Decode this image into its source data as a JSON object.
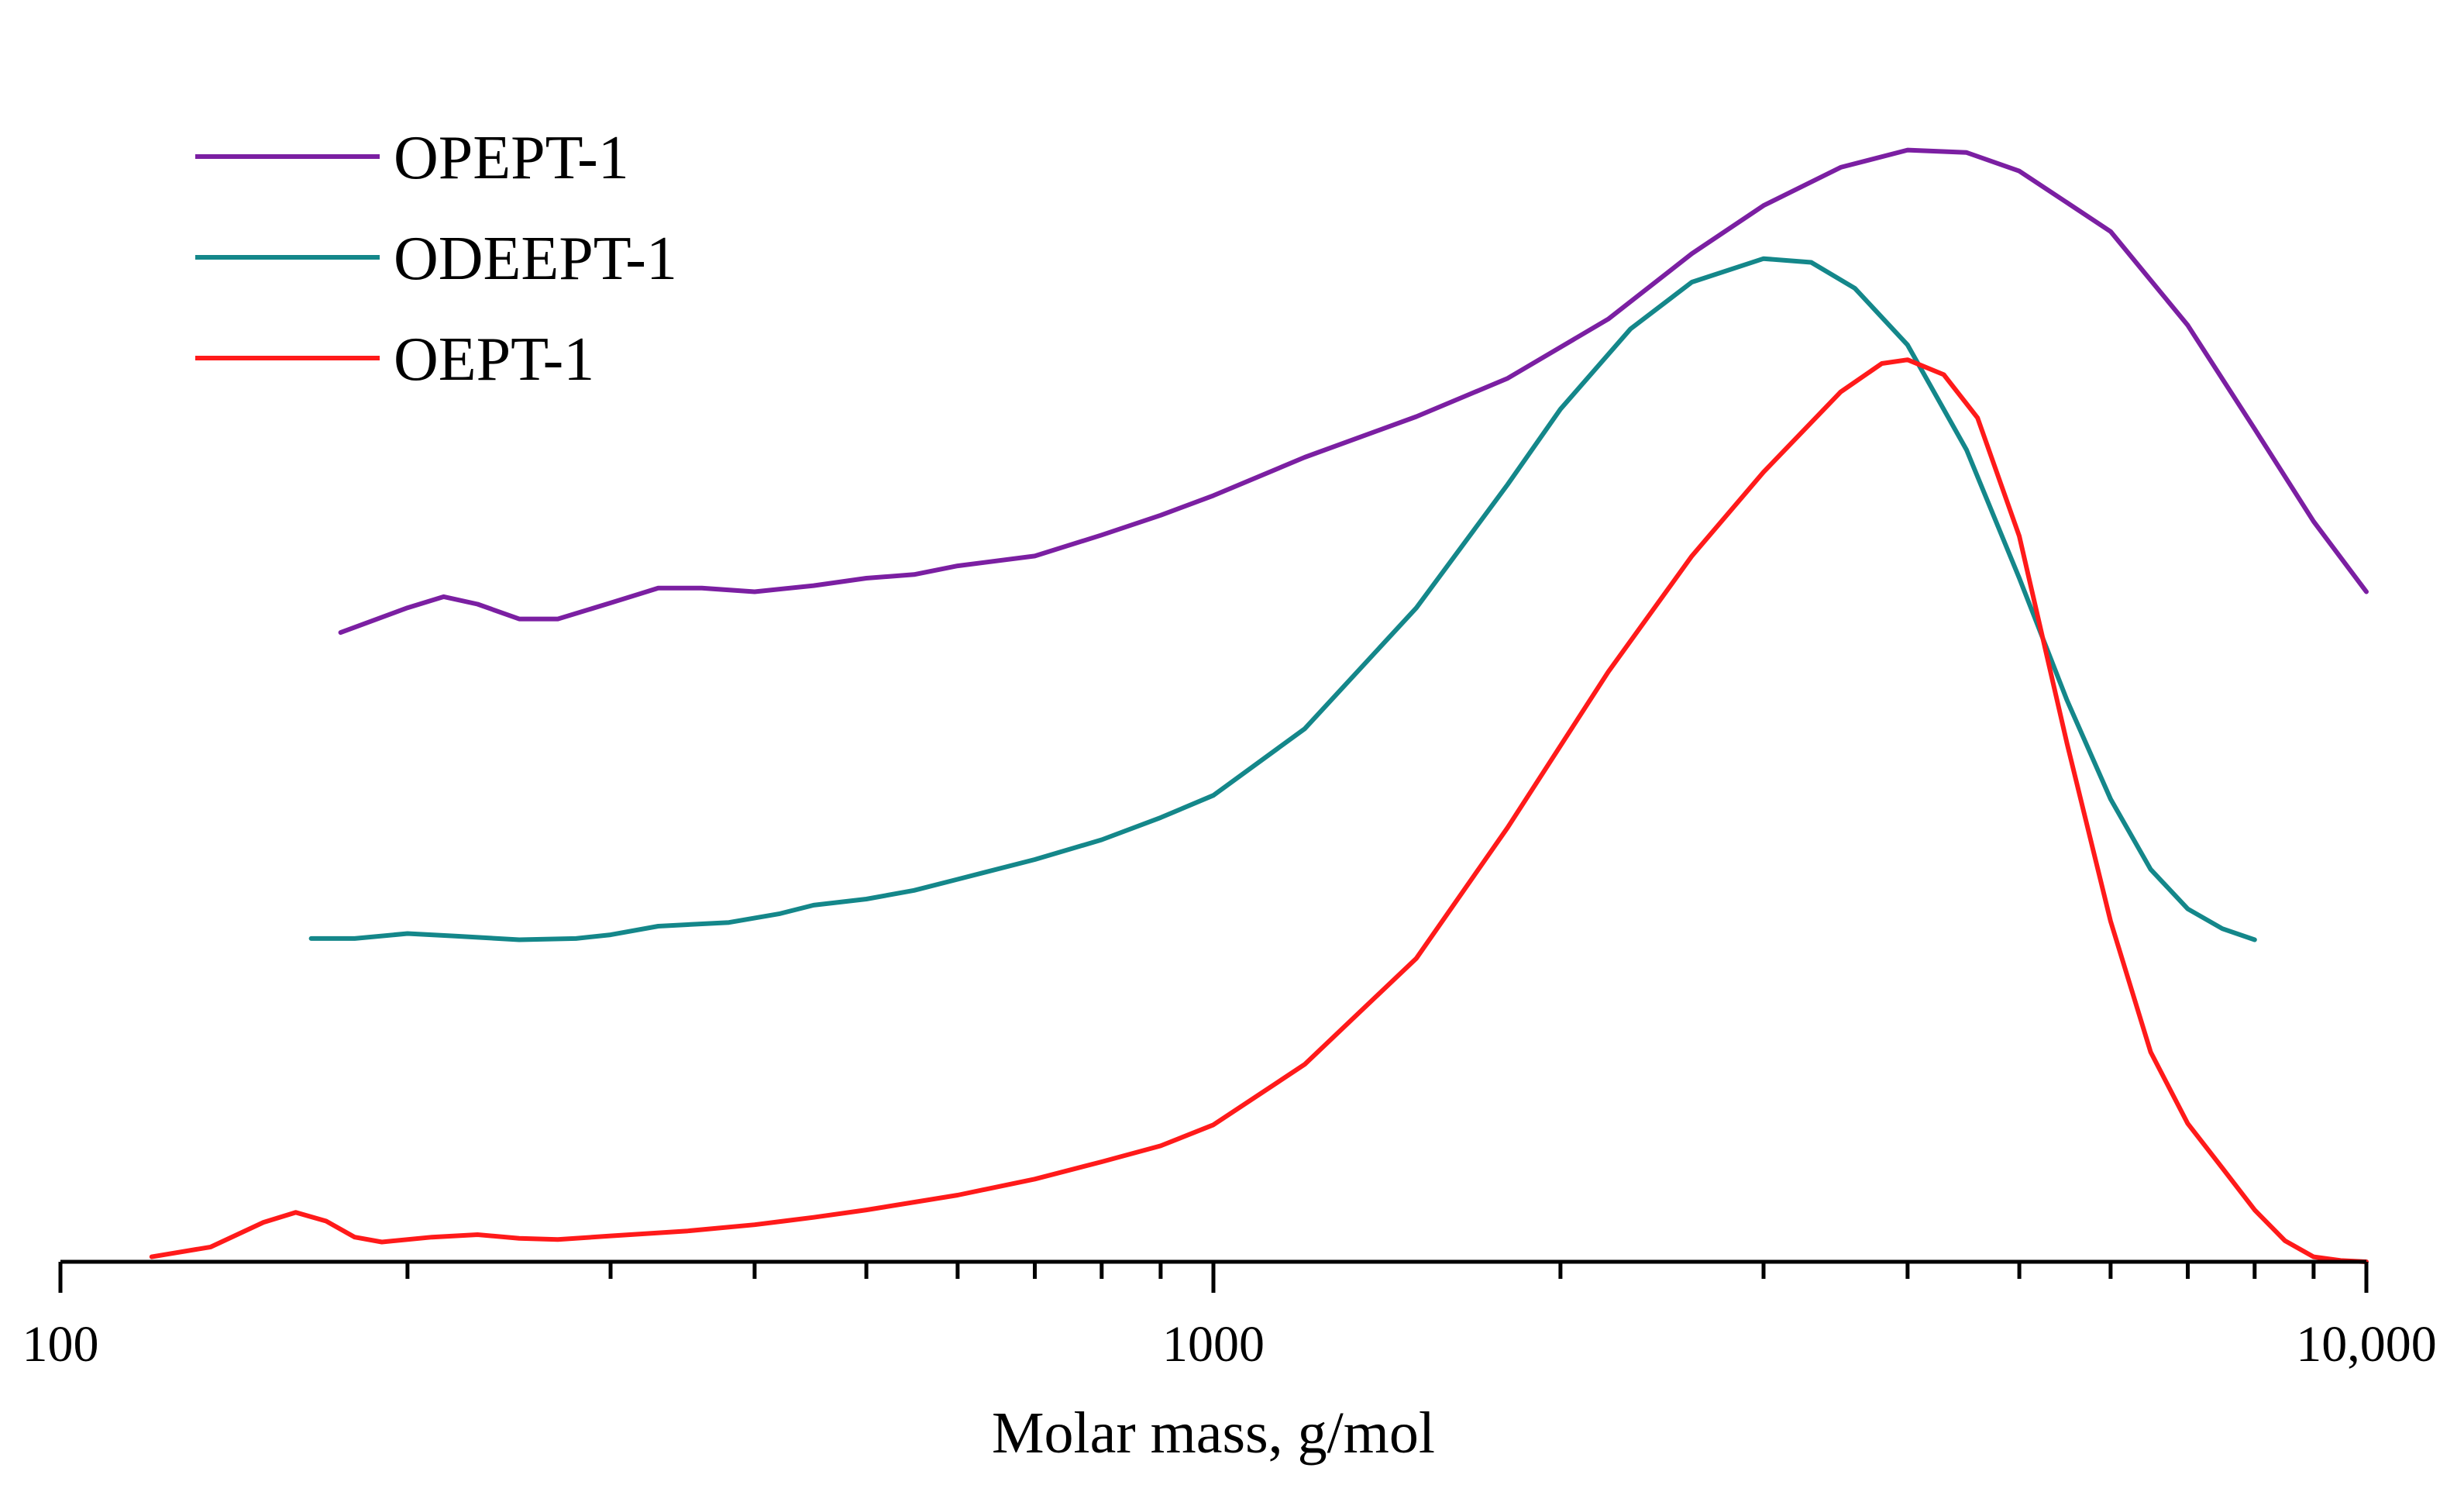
{
  "chart_data": {
    "type": "line",
    "title": "",
    "xlabel": "Molar mass, g/mol",
    "ylabel": "",
    "xscale": "log",
    "xlim": [
      100,
      10000
    ],
    "ylim": [
      0,
      1.0
    ],
    "x_tick_labels": [
      "100",
      "1000",
      "10,000"
    ],
    "x_tick_values": [
      100,
      1000,
      10000
    ],
    "minor_ticks": [
      200,
      300,
      400,
      500,
      600,
      700,
      800,
      900,
      2000,
      3000,
      4000,
      5000,
      6000,
      7000,
      8000,
      9000
    ],
    "y_axis_visible": false,
    "grid": false,
    "legend_position": "top-left",
    "series": [
      {
        "name": "OPEPT-1",
        "color": "#7B1FA2",
        "points": [
          [
            175,
            0.51
          ],
          [
            200,
            0.53
          ],
          [
            215,
            0.539
          ],
          [
            230,
            0.533
          ],
          [
            250,
            0.521
          ],
          [
            270,
            0.521
          ],
          [
            300,
            0.534
          ],
          [
            330,
            0.546
          ],
          [
            360,
            0.546
          ],
          [
            400,
            0.543
          ],
          [
            450,
            0.548
          ],
          [
            500,
            0.554
          ],
          [
            550,
            0.557
          ],
          [
            600,
            0.564
          ],
          [
            700,
            0.572
          ],
          [
            800,
            0.589
          ],
          [
            900,
            0.605
          ],
          [
            1000,
            0.621
          ],
          [
            1200,
            0.652
          ],
          [
            1500,
            0.685
          ],
          [
            1800,
            0.716
          ],
          [
            2200,
            0.764
          ],
          [
            2600,
            0.817
          ],
          [
            3000,
            0.856
          ],
          [
            3500,
            0.887
          ],
          [
            4000,
            0.901
          ],
          [
            4500,
            0.899
          ],
          [
            5000,
            0.884
          ],
          [
            6000,
            0.835
          ],
          [
            7000,
            0.759
          ],
          [
            8000,
            0.675
          ],
          [
            9000,
            0.6
          ],
          [
            10000,
            0.543
          ]
        ]
      },
      {
        "name": "ODEEPT-1",
        "color": "#14878A",
        "points": [
          [
            165,
            0.262
          ],
          [
            180,
            0.262
          ],
          [
            200,
            0.266
          ],
          [
            220,
            0.264
          ],
          [
            250,
            0.261
          ],
          [
            280,
            0.262
          ],
          [
            300,
            0.265
          ],
          [
            330,
            0.272
          ],
          [
            380,
            0.275
          ],
          [
            420,
            0.282
          ],
          [
            450,
            0.289
          ],
          [
            500,
            0.294
          ],
          [
            550,
            0.301
          ],
          [
            600,
            0.31
          ],
          [
            700,
            0.326
          ],
          [
            800,
            0.342
          ],
          [
            900,
            0.36
          ],
          [
            1000,
            0.378
          ],
          [
            1200,
            0.432
          ],
          [
            1500,
            0.53
          ],
          [
            1800,
            0.63
          ],
          [
            2000,
            0.691
          ],
          [
            2300,
            0.756
          ],
          [
            2600,
            0.794
          ],
          [
            3000,
            0.813
          ],
          [
            3300,
            0.81
          ],
          [
            3600,
            0.789
          ],
          [
            4000,
            0.743
          ],
          [
            4500,
            0.658
          ],
          [
            5000,
            0.554
          ],
          [
            5500,
            0.455
          ],
          [
            6000,
            0.375
          ],
          [
            6500,
            0.318
          ],
          [
            7000,
            0.286
          ],
          [
            7500,
            0.27
          ],
          [
            8000,
            0.261
          ]
        ]
      },
      {
        "name": "OEPT-1",
        "color": "#FF1A1A",
        "points": [
          [
            120,
            0.004
          ],
          [
            135,
            0.012
          ],
          [
            150,
            0.032
          ],
          [
            160,
            0.04
          ],
          [
            170,
            0.033
          ],
          [
            180,
            0.02
          ],
          [
            190,
            0.016
          ],
          [
            210,
            0.02
          ],
          [
            230,
            0.022
          ],
          [
            250,
            0.019
          ],
          [
            270,
            0.018
          ],
          [
            300,
            0.021
          ],
          [
            350,
            0.025
          ],
          [
            400,
            0.03
          ],
          [
            450,
            0.036
          ],
          [
            500,
            0.042
          ],
          [
            600,
            0.054
          ],
          [
            700,
            0.067
          ],
          [
            800,
            0.081
          ],
          [
            900,
            0.094
          ],
          [
            1000,
            0.111
          ],
          [
            1200,
            0.16
          ],
          [
            1500,
            0.246
          ],
          [
            1800,
            0.352
          ],
          [
            2200,
            0.478
          ],
          [
            2600,
            0.572
          ],
          [
            3000,
            0.64
          ],
          [
            3500,
            0.705
          ],
          [
            3800,
            0.728
          ],
          [
            4000,
            0.731
          ],
          [
            4300,
            0.719
          ],
          [
            4600,
            0.684
          ],
          [
            5000,
            0.588
          ],
          [
            5500,
            0.42
          ],
          [
            6000,
            0.276
          ],
          [
            6500,
            0.17
          ],
          [
            7000,
            0.112
          ],
          [
            7500,
            0.076
          ],
          [
            8000,
            0.042
          ],
          [
            8500,
            0.017
          ],
          [
            9000,
            0.004
          ],
          [
            9500,
            0.001
          ],
          [
            10000,
            0.0
          ]
        ]
      }
    ]
  }
}
